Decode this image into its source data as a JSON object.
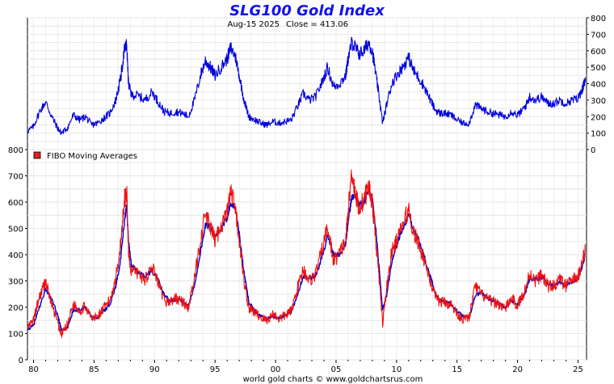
{
  "chart_data": [
    {
      "type": "line",
      "title": "SLG100 Gold Index",
      "subtitle_date": "Aug-15  2025",
      "subtitle_close": "Close = 413.06",
      "ylim": [
        0,
        800
      ],
      "yticks": [
        0,
        100,
        200,
        300,
        400,
        500,
        600,
        700,
        800
      ],
      "xlim": [
        1979.5,
        2025.7
      ],
      "grid": true,
      "series": [
        {
          "color": "#0000dd",
          "x": [
            1979.5,
            1980.0,
            1980.5,
            1981.0,
            1981.5,
            1982.0,
            1982.3,
            1982.8,
            1983.3,
            1983.8,
            1984.3,
            1984.8,
            1985.3,
            1985.8,
            1986.3,
            1986.8,
            1987.2,
            1987.5,
            1987.7,
            1987.85,
            1988.1,
            1988.6,
            1989.2,
            1989.8,
            1990.3,
            1990.8,
            1991.3,
            1991.8,
            1992.3,
            1992.8,
            1993.3,
            1993.8,
            1994.2,
            1994.6,
            1995.0,
            1995.5,
            1996.0,
            1996.3,
            1996.7,
            1997.0,
            1997.4,
            1997.8,
            1998.3,
            1998.8,
            1999.3,
            1999.8,
            2000.3,
            2000.8,
            2001.3,
            2001.8,
            2002.3,
            2002.8,
            2003.3,
            2003.8,
            2004.3,
            2004.8,
            2005.3,
            2005.8,
            2006.0,
            2006.3,
            2006.6,
            2006.9,
            2007.3,
            2007.7,
            2008.0,
            2008.3,
            2008.6,
            2008.85,
            2009.2,
            2009.6,
            2010.0,
            2010.5,
            2011.0,
            2011.4,
            2011.8,
            2012.3,
            2012.8,
            2013.2,
            2013.6,
            2014.0,
            2014.5,
            2015.0,
            2015.5,
            2016.0,
            2016.5,
            2017.0,
            2017.5,
            2018.0,
            2018.5,
            2019.0,
            2019.5,
            2020.0,
            2020.3,
            2020.7,
            2021.0,
            2021.5,
            2022.0,
            2022.5,
            2023.0,
            2023.5,
            2024.0,
            2024.5,
            2025.0,
            2025.4,
            2025.6
          ],
          "values": [
            110,
            140,
            230,
            290,
            200,
            130,
            100,
            130,
            210,
            180,
            200,
            150,
            160,
            190,
            220,
            300,
            430,
            600,
            640,
            400,
            330,
            330,
            300,
            350,
            290,
            230,
            220,
            230,
            220,
            200,
            300,
            450,
            540,
            500,
            450,
            500,
            550,
            620,
            560,
            450,
            300,
            200,
            180,
            160,
            150,
            170,
            160,
            170,
            180,
            260,
            340,
            300,
            320,
            400,
            500,
            380,
            400,
            450,
            550,
            650,
            620,
            580,
            600,
            650,
            600,
            450,
            300,
            160,
            280,
            400,
            450,
            500,
            560,
            480,
            440,
            380,
            300,
            240,
            220,
            220,
            210,
            180,
            160,
            160,
            270,
            250,
            230,
            220,
            210,
            200,
            230,
            210,
            230,
            270,
            320,
            300,
            320,
            280,
            280,
            300,
            280,
            300,
            310,
            380,
            413
          ]
        }
      ]
    },
    {
      "type": "line",
      "legend": "FIBO  Moving  Averages",
      "legend_color": "#dd2222",
      "ylim": [
        0,
        800
      ],
      "yticks": [
        0,
        100,
        200,
        300,
        400,
        500,
        600,
        700,
        800
      ],
      "xlim": [
        1979.5,
        2025.7
      ],
      "xticks": [
        "80",
        "85",
        "90",
        "95",
        "00",
        "05",
        "10",
        "15",
        "20",
        "25"
      ],
      "xtick_years": [
        1980,
        1985,
        1990,
        1995,
        2000,
        2005,
        2010,
        2015,
        2020,
        2025
      ],
      "grid": true,
      "series": [
        {
          "color": "#ee1111",
          "x": [
            1979.5,
            1980.0,
            1980.5,
            1981.0,
            1981.5,
            1982.0,
            1982.3,
            1982.8,
            1983.3,
            1983.8,
            1984.3,
            1984.8,
            1985.3,
            1985.8,
            1986.3,
            1986.8,
            1987.2,
            1987.5,
            1987.7,
            1987.85,
            1988.1,
            1988.6,
            1989.2,
            1989.8,
            1990.3,
            1990.8,
            1991.3,
            1991.8,
            1992.3,
            1992.8,
            1993.3,
            1993.8,
            1994.2,
            1994.6,
            1995.0,
            1995.5,
            1996.0,
            1996.3,
            1996.7,
            1997.0,
            1997.4,
            1997.8,
            1998.3,
            1998.8,
            1999.3,
            1999.8,
            2000.3,
            2000.8,
            2001.3,
            2001.8,
            2002.3,
            2002.8,
            2003.3,
            2003.8,
            2004.3,
            2004.8,
            2005.3,
            2005.8,
            2006.0,
            2006.3,
            2006.6,
            2006.9,
            2007.3,
            2007.7,
            2008.0,
            2008.3,
            2008.6,
            2008.85,
            2009.2,
            2009.6,
            2010.0,
            2010.5,
            2011.0,
            2011.4,
            2011.8,
            2012.3,
            2012.8,
            2013.2,
            2013.6,
            2014.0,
            2014.5,
            2015.0,
            2015.5,
            2016.0,
            2016.5,
            2017.0,
            2017.5,
            2018.0,
            2018.5,
            2019.0,
            2019.5,
            2020.0,
            2020.3,
            2020.7,
            2021.0,
            2021.5,
            2022.0,
            2022.5,
            2023.0,
            2023.5,
            2024.0,
            2024.5,
            2025.0,
            2025.4,
            2025.6
          ],
          "values": [
            120,
            150,
            240,
            300,
            210,
            140,
            95,
            135,
            215,
            185,
            205,
            155,
            165,
            195,
            225,
            310,
            440,
            610,
            640,
            410,
            335,
            330,
            305,
            355,
            290,
            225,
            220,
            235,
            220,
            200,
            305,
            460,
            555,
            505,
            455,
            510,
            560,
            640,
            565,
            455,
            300,
            195,
            180,
            160,
            150,
            175,
            155,
            170,
            185,
            270,
            345,
            300,
            325,
            410,
            505,
            375,
            405,
            455,
            560,
            720,
            630,
            575,
            610,
            660,
            600,
            450,
            290,
            140,
            280,
            410,
            450,
            510,
            575,
            485,
            445,
            380,
            300,
            235,
            220,
            220,
            210,
            175,
            155,
            160,
            280,
            250,
            230,
            220,
            210,
            195,
            235,
            205,
            235,
            275,
            330,
            300,
            325,
            280,
            280,
            305,
            280,
            305,
            315,
            385,
            413
          ]
        },
        {
          "color": "#0000cc",
          "x": [
            1979.5,
            1980.0,
            1980.5,
            1981.0,
            1981.5,
            1982.0,
            1982.3,
            1982.8,
            1983.3,
            1983.8,
            1984.3,
            1984.8,
            1985.3,
            1985.8,
            1986.3,
            1986.8,
            1987.2,
            1987.5,
            1987.7,
            1987.85,
            1988.1,
            1988.6,
            1989.2,
            1989.8,
            1990.3,
            1990.8,
            1991.3,
            1991.8,
            1992.3,
            1992.8,
            1993.3,
            1993.8,
            1994.2,
            1994.6,
            1995.0,
            1995.5,
            1996.0,
            1996.3,
            1996.7,
            1997.0,
            1997.4,
            1997.8,
            1998.3,
            1998.8,
            1999.3,
            1999.8,
            2000.3,
            2000.8,
            2001.3,
            2001.8,
            2002.3,
            2002.8,
            2003.3,
            2003.8,
            2004.3,
            2004.8,
            2005.3,
            2005.8,
            2006.0,
            2006.3,
            2006.6,
            2006.9,
            2007.3,
            2007.7,
            2008.0,
            2008.3,
            2008.6,
            2008.85,
            2009.2,
            2009.6,
            2010.0,
            2010.5,
            2011.0,
            2011.4,
            2011.8,
            2012.3,
            2012.8,
            2013.2,
            2013.6,
            2014.0,
            2014.5,
            2015.0,
            2015.5,
            2016.0,
            2016.5,
            2017.0,
            2017.5,
            2018.0,
            2018.5,
            2019.0,
            2019.5,
            2020.0,
            2020.3,
            2020.7,
            2021.0,
            2021.5,
            2022.0,
            2022.5,
            2023.0,
            2023.5,
            2024.0,
            2024.5,
            2025.0,
            2025.4,
            2025.6
          ],
          "values": [
            115,
            130,
            200,
            270,
            230,
            170,
            115,
            120,
            190,
            190,
            200,
            165,
            160,
            185,
            210,
            280,
            380,
            520,
            590,
            450,
            360,
            335,
            315,
            340,
            305,
            245,
            225,
            230,
            222,
            205,
            280,
            410,
            510,
            510,
            465,
            495,
            540,
            600,
            575,
            480,
            330,
            220,
            185,
            165,
            155,
            165,
            160,
            168,
            180,
            245,
            320,
            310,
            318,
            385,
            470,
            400,
            400,
            440,
            520,
            620,
            625,
            590,
            600,
            640,
            610,
            490,
            330,
            190,
            250,
            370,
            440,
            495,
            550,
            500,
            455,
            390,
            315,
            255,
            225,
            222,
            212,
            185,
            165,
            160,
            245,
            255,
            235,
            222,
            212,
            200,
            225,
            212,
            228,
            262,
            310,
            305,
            315,
            290,
            282,
            298,
            285,
            298,
            308,
            365,
            400
          ]
        }
      ]
    }
  ],
  "footer": "world gold charts © www.goldchartsrus.com"
}
